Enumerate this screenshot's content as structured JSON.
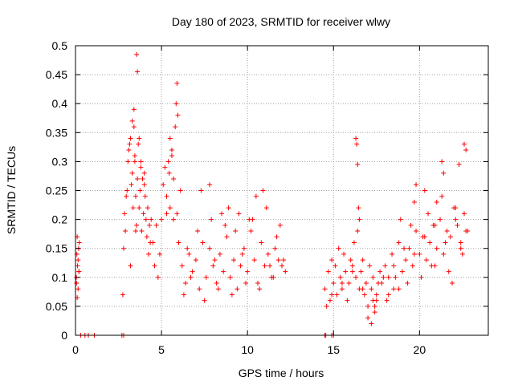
{
  "chart_data": {
    "type": "scatter",
    "title": "Day 180 of 2023, SRMTID for receiver wlwy",
    "xlabel": "GPS time / hours",
    "ylabel": "SRMTID / TECUs",
    "xlim": [
      0,
      24
    ],
    "ylim": [
      0,
      0.5
    ],
    "xticks": [
      0,
      5,
      10,
      15,
      20
    ],
    "xtick_labels": [
      "0",
      "5",
      "10",
      "15",
      "20"
    ],
    "yticks": [
      0,
      0.05,
      0.1,
      0.15,
      0.2,
      0.25,
      0.3,
      0.35,
      0.4,
      0.45,
      0.5
    ],
    "ytick_labels": [
      "0",
      "0.05",
      "0.1",
      "0.15",
      "0.2",
      "0.25",
      "0.3",
      "0.35",
      "0.4",
      "0.45",
      "0.5"
    ],
    "grid": true,
    "marker": "+",
    "color": "#ff0000",
    "series": [
      {
        "name": "SRMTID",
        "x": [
          0.05,
          0.08,
          0.1,
          0.12,
          0.15,
          0.18,
          0.2,
          0.22,
          0.1,
          0.15,
          0.06,
          0.2,
          2.75,
          2.8,
          2.85,
          2.9,
          2.95,
          3.0,
          3.05,
          3.1,
          3.15,
          3.2,
          3.25,
          3.3,
          3.35,
          3.4,
          3.45,
          3.5,
          3.55,
          3.6,
          3.65,
          3.7,
          3.75,
          3.8,
          3.85,
          3.9,
          3.95,
          4.0,
          4.05,
          4.1,
          4.15,
          4.2,
          4.25,
          4.3,
          4.35,
          4.4,
          3.55,
          3.6,
          3.4,
          3.3,
          3.45,
          3.7,
          3.8,
          4.0,
          3.2,
          3.5,
          4.5,
          4.6,
          4.7,
          4.8,
          4.9,
          5.0,
          5.1,
          5.2,
          5.3,
          5.4,
          5.5,
          5.6,
          5.7,
          5.8,
          5.9,
          6.0,
          6.1,
          5.45,
          5.5,
          5.85,
          5.9,
          5.95,
          5.6,
          5.3,
          5.7,
          6.2,
          6.4,
          6.6,
          6.8,
          7.0,
          7.2,
          7.4,
          7.6,
          7.8,
          8.0,
          8.2,
          8.4,
          8.6,
          8.8,
          9.0,
          9.2,
          9.4,
          9.6,
          9.8,
          10.0,
          10.2,
          10.4,
          10.6,
          10.8,
          11.0,
          11.2,
          11.4,
          11.6,
          11.8,
          12.0,
          12.2,
          6.3,
          6.7,
          7.1,
          7.5,
          7.9,
          8.3,
          8.7,
          9.1,
          9.5,
          9.9,
          10.3,
          10.7,
          11.1,
          11.5,
          11.9,
          6.5,
          7.3,
          8.1,
          8.9,
          9.7,
          10.5,
          11.3,
          12.1,
          7.8,
          8.5,
          9.3,
          10.1,
          10.9,
          11.7,
          14.5,
          14.6,
          14.7,
          14.8,
          14.9,
          15.0,
          15.1,
          15.2,
          15.3,
          15.4,
          15.5,
          15.6,
          15.7,
          15.8,
          15.9,
          16.0,
          16.1,
          16.2,
          16.3,
          16.4,
          16.5,
          16.6,
          16.7,
          16.8,
          16.9,
          17.0,
          17.1,
          17.2,
          17.3,
          17.4,
          17.5,
          17.6,
          17.7,
          16.3,
          16.35,
          16.4,
          16.45,
          16.5,
          17.8,
          18.0,
          18.2,
          18.4,
          18.6,
          18.8,
          19.0,
          19.2,
          19.4,
          19.6,
          19.8,
          20.0,
          20.2,
          20.4,
          20.6,
          20.8,
          21.0,
          21.2,
          21.4,
          21.6,
          21.8,
          22.0,
          22.2,
          22.4,
          22.6,
          22.8,
          18.1,
          18.5,
          18.9,
          19.3,
          19.7,
          20.1,
          20.5,
          20.9,
          21.3,
          21.7,
          22.1,
          22.5,
          21.3,
          21.4,
          22.6,
          22.7,
          22.3,
          19.8,
          20.3,
          21.0,
          17.0,
          17.2,
          17.4,
          17.5,
          18.2,
          18.8,
          19.5,
          20.7,
          21.9,
          22.4,
          14.9,
          15.5,
          16.1,
          16.7,
          17.3,
          17.9,
          18.5,
          19.1,
          19.7,
          20.3,
          20.9,
          21.5,
          22.1,
          22.7
        ],
        "y": [
          0.1,
          0.14,
          0.17,
          0.12,
          0.08,
          0.15,
          0.11,
          0.16,
          0.065,
          0.13,
          0.09,
          0.11,
          0.07,
          0.15,
          0.21,
          0.18,
          0.24,
          0.25,
          0.3,
          0.32,
          0.33,
          0.34,
          0.26,
          0.28,
          0.22,
          0.39,
          0.3,
          0.24,
          0.19,
          0.27,
          0.33,
          0.22,
          0.25,
          0.3,
          0.18,
          0.27,
          0.21,
          0.26,
          0.24,
          0.2,
          0.17,
          0.22,
          0.14,
          0.19,
          0.16,
          0.2,
          0.485,
          0.455,
          0.36,
          0.37,
          0.31,
          0.34,
          0.29,
          0.28,
          0.12,
          0.18,
          0.16,
          0.12,
          0.19,
          0.1,
          0.14,
          0.2,
          0.26,
          0.29,
          0.24,
          0.3,
          0.22,
          0.32,
          0.27,
          0.36,
          0.21,
          0.16,
          0.25,
          0.28,
          0.34,
          0.4,
          0.435,
          0.38,
          0.31,
          0.21,
          0.2,
          0.12,
          0.09,
          0.14,
          0.11,
          0.13,
          0.08,
          0.16,
          0.1,
          0.15,
          0.12,
          0.09,
          0.14,
          0.11,
          0.17,
          0.1,
          0.13,
          0.08,
          0.12,
          0.15,
          0.11,
          0.18,
          0.13,
          0.09,
          0.16,
          0.12,
          0.14,
          0.1,
          0.15,
          0.13,
          0.12,
          0.11,
          0.07,
          0.1,
          0.18,
          0.06,
          0.2,
          0.08,
          0.19,
          0.07,
          0.21,
          0.09,
          0.2,
          0.08,
          0.22,
          0.1,
          0.19,
          0.15,
          0.25,
          0.13,
          0.22,
          0.14,
          0.24,
          0.12,
          0.13,
          0.26,
          0.21,
          0.18,
          0.2,
          0.25,
          0.17,
          0.08,
          0.05,
          0.11,
          0.06,
          0.13,
          0.09,
          0.12,
          0.07,
          0.15,
          0.1,
          0.08,
          0.14,
          0.11,
          0.06,
          0.09,
          0.13,
          0.12,
          0.16,
          0.1,
          0.18,
          0.08,
          0.11,
          0.13,
          0.07,
          0.09,
          0.05,
          0.12,
          0.08,
          0.1,
          0.04,
          0.06,
          0.09,
          0.11,
          0.34,
          0.33,
          0.295,
          0.22,
          0.2,
          0.09,
          0.12,
          0.07,
          0.14,
          0.1,
          0.16,
          0.11,
          0.13,
          0.15,
          0.12,
          0.18,
          0.14,
          0.17,
          0.13,
          0.16,
          0.19,
          0.15,
          0.2,
          0.14,
          0.18,
          0.17,
          0.22,
          0.19,
          0.16,
          0.21,
          0.18,
          0.06,
          0.08,
          0.2,
          0.09,
          0.23,
          0.1,
          0.21,
          0.12,
          0.24,
          0.11,
          0.22,
          0.14,
          0.3,
          0.28,
          0.33,
          0.32,
          0.295,
          0.26,
          0.25,
          0.23,
          0.03,
          0.02,
          0.05,
          0.07,
          0.1,
          0.08,
          0.19,
          0.12,
          0.09,
          0.15,
          0.07,
          0.09,
          0.11,
          0.08,
          0.06,
          0.1,
          0.12,
          0.15,
          0.14,
          0.17,
          0.19,
          0.16,
          0.2,
          0.18
        ]
      }
    ],
    "zero_markers_x": [
      0.3,
      0.55,
      0.75,
      1.1,
      2.7,
      2.8,
      14.5,
      14.55,
      14.9,
      15.0
    ]
  }
}
